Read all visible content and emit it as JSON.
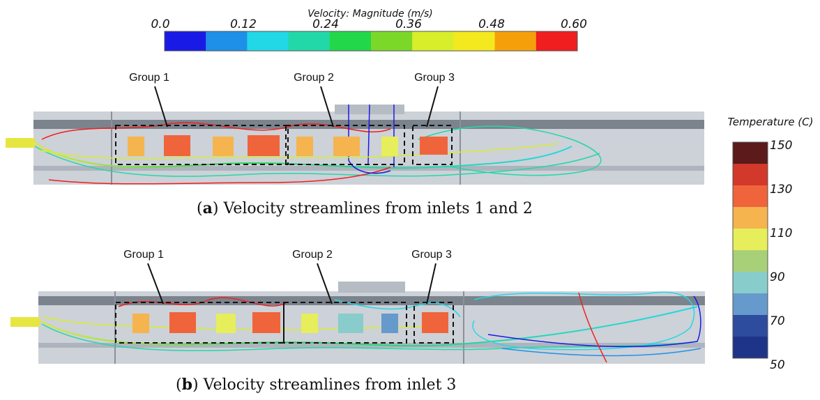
{
  "velocity_legend": {
    "title": "Velocity: Magnitude (m/s)",
    "ticks": [
      "0.0",
      "0.12",
      "0.24",
      "0.36",
      "0.48",
      "0.60"
    ],
    "colors": [
      "#1a1ae6",
      "#1e90e8",
      "#22d7e6",
      "#22d8a8",
      "#22d84a",
      "#7cd828",
      "#d8ee2a",
      "#f4e81e",
      "#f5a00a",
      "#f01e1e"
    ]
  },
  "temperature_legend": {
    "title": "Temperature (C)",
    "ticks": [
      "150",
      "130",
      "110",
      "90",
      "70",
      "50"
    ],
    "colors": [
      "#5c1a1a",
      "#d2392a",
      "#f0643c",
      "#f5b44e",
      "#e6ee5c",
      "#a8d078",
      "#88cccc",
      "#6699cc",
      "#2e4c9e",
      "#1e3488"
    ]
  },
  "panels": [
    {
      "caption_letter": "a",
      "caption_text": " Velocity streamlines from inlets 1 and 2",
      "groups": [
        "Group 1",
        "Group 2",
        "Group 3"
      ]
    },
    {
      "caption_letter": "b",
      "caption_text": " Velocity streamlines from inlet 3",
      "groups": [
        "Group 1",
        "Group 2",
        "Group 3"
      ]
    }
  ]
}
